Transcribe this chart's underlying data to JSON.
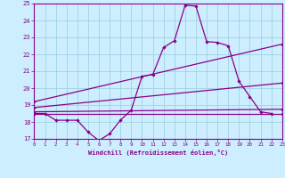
{
  "xlabel": "Windchill (Refroidissement éolien,°C)",
  "xlim": [
    0,
    23
  ],
  "ylim": [
    17,
    25
  ],
  "yticks": [
    17,
    18,
    19,
    20,
    21,
    22,
    23,
    24,
    25
  ],
  "xticks": [
    0,
    1,
    2,
    3,
    4,
    5,
    6,
    7,
    8,
    9,
    10,
    11,
    12,
    13,
    14,
    15,
    16,
    17,
    18,
    19,
    20,
    21,
    22,
    23
  ],
  "background_color": "#cceeff",
  "grid_color": "#99ccdd",
  "line_color": "#880088",
  "line1_x": [
    0,
    1,
    2,
    3,
    4,
    5,
    6,
    7,
    8,
    9,
    10,
    11,
    12,
    13,
    14,
    15,
    16,
    17,
    18,
    19,
    20,
    21,
    22
  ],
  "line1_y": [
    18.5,
    18.5,
    18.1,
    18.1,
    18.1,
    17.4,
    16.9,
    17.3,
    18.1,
    18.7,
    20.7,
    20.8,
    22.4,
    22.8,
    24.9,
    24.85,
    22.75,
    22.7,
    22.5,
    20.4,
    19.5,
    18.6,
    18.5
  ],
  "line2_x": [
    0,
    23
  ],
  "line2_y": [
    18.5,
    18.5
  ],
  "line3_x": [
    0,
    23
  ],
  "line3_y": [
    18.6,
    18.75
  ],
  "line4_x": [
    0,
    23
  ],
  "line4_y": [
    18.85,
    20.3
  ],
  "line5_x": [
    0,
    23
  ],
  "line5_y": [
    19.2,
    22.6
  ]
}
